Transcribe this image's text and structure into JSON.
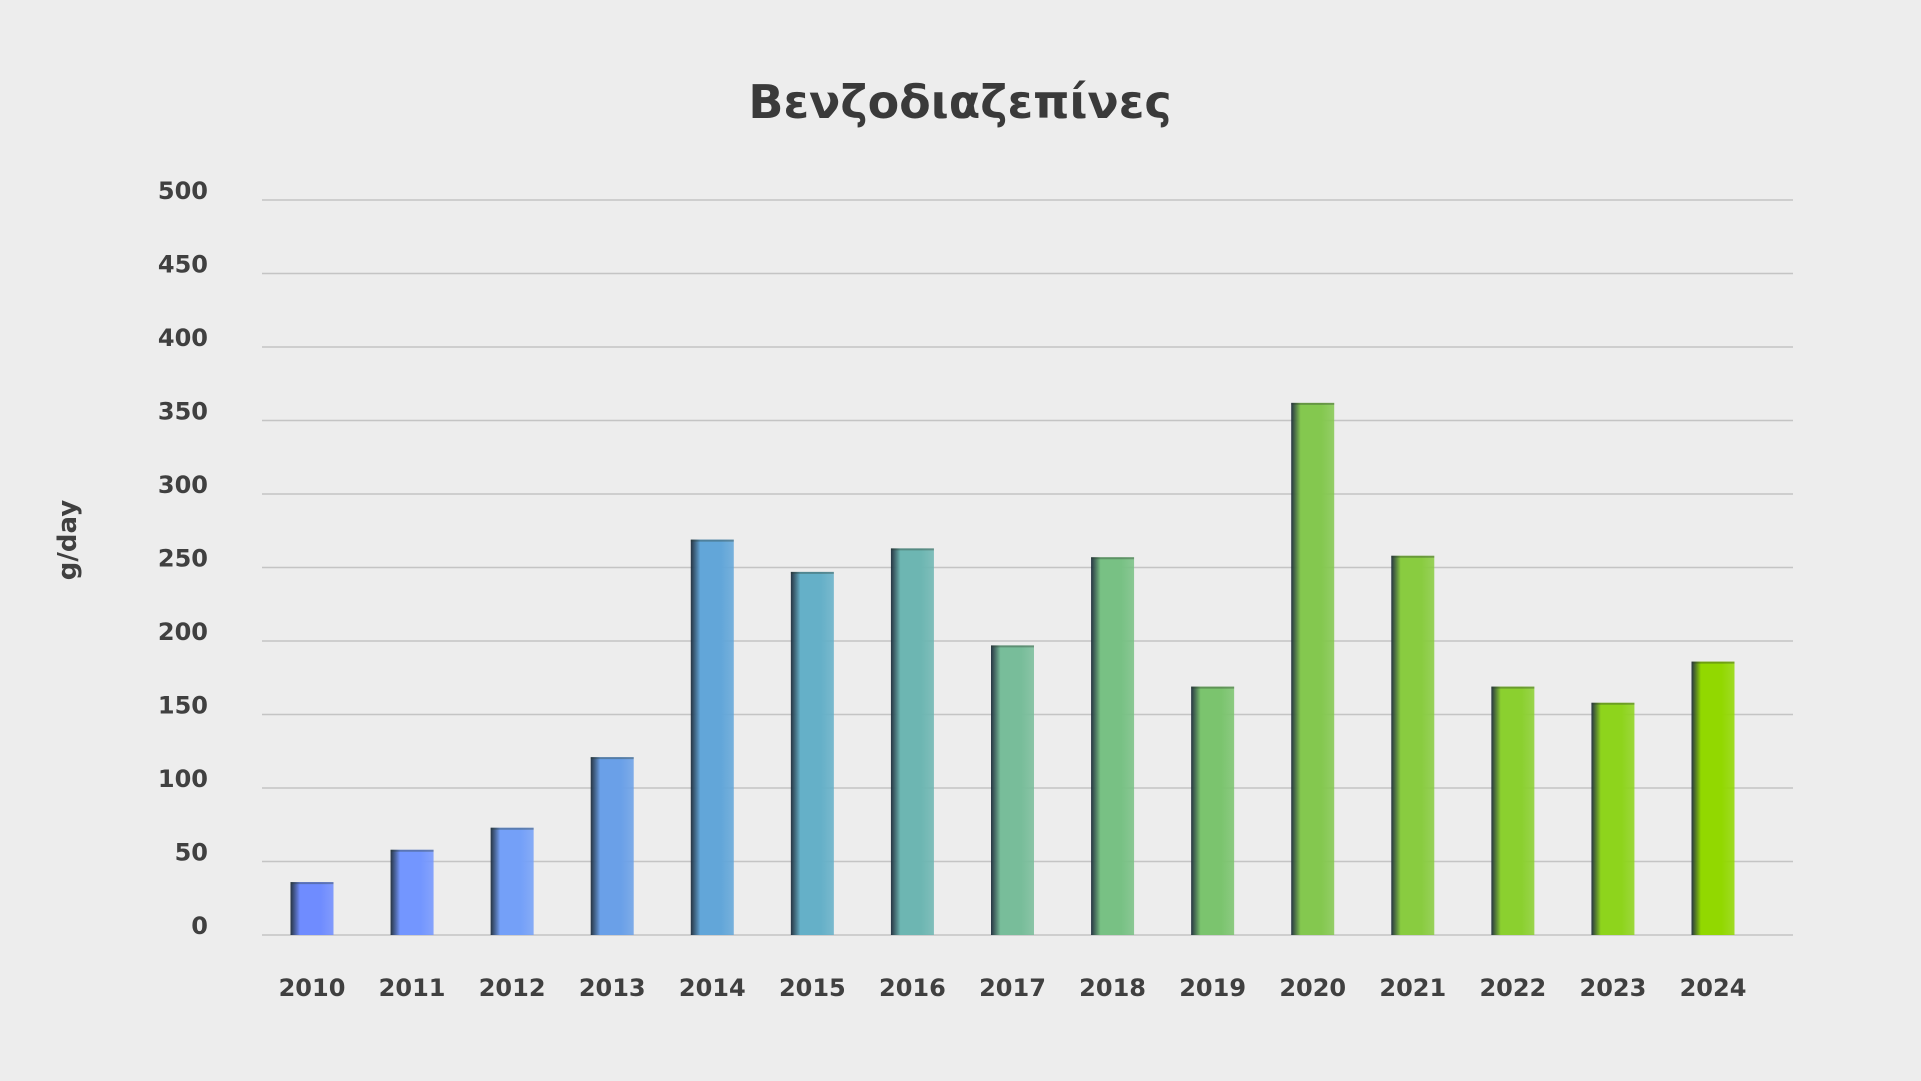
{
  "chart_data": {
    "type": "bar",
    "title": "Βενζοδιαζεπίνες",
    "xlabel": "",
    "ylabel": "g/day",
    "ylim": [
      0,
      500
    ],
    "yticks": [
      0,
      50,
      100,
      150,
      200,
      250,
      300,
      350,
      400,
      450,
      500
    ],
    "grid": true,
    "legend": "none",
    "categories": [
      "2010",
      "2011",
      "2012",
      "2013",
      "2014",
      "2015",
      "2016",
      "2017",
      "2018",
      "2019",
      "2020",
      "2021",
      "2022",
      "2023",
      "2024"
    ],
    "values": [
      36,
      58,
      73,
      121,
      269,
      247,
      263,
      197,
      257,
      169,
      362,
      258,
      169,
      158,
      186
    ],
    "bar_colors": [
      "#6f8cff",
      "#7396ff",
      "#74a0f8",
      "#6aa0e8",
      "#62a6d9",
      "#65b0c8",
      "#6db6b2",
      "#78bd9a",
      "#78c184",
      "#7bc46e",
      "#84c84f",
      "#89cc40",
      "#8bd02f",
      "#8ed41c",
      "#92d800"
    ],
    "background_color": "#ededed",
    "grid_color": "#c4c4c4",
    "text_color": "#404040"
  }
}
